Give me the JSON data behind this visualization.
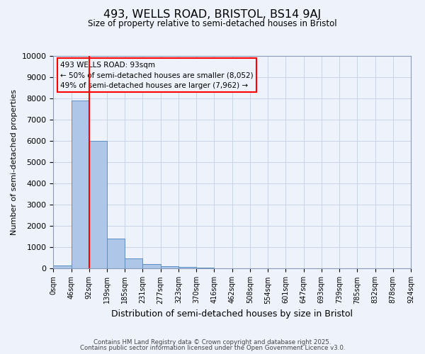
{
  "title": "493, WELLS ROAD, BRISTOL, BS14 9AJ",
  "subtitle": "Size of property relative to semi-detached houses in Bristol",
  "xlabel": "Distribution of semi-detached houses by size in Bristol",
  "ylabel": "Number of semi-detached properties",
  "bar_values": [
    150,
    7900,
    6000,
    1400,
    480,
    230,
    120,
    80,
    40,
    0,
    0,
    0,
    0,
    0,
    0,
    0,
    0,
    0,
    0,
    0
  ],
  "bin_labels": [
    "0sqm",
    "46sqm",
    "92sqm",
    "139sqm",
    "185sqm",
    "231sqm",
    "277sqm",
    "323sqm",
    "370sqm",
    "416sqm",
    "462sqm",
    "508sqm",
    "554sqm",
    "601sqm",
    "647sqm",
    "693sqm",
    "739sqm",
    "785sqm",
    "832sqm",
    "878sqm",
    "924sqm"
  ],
  "bar_color": "#aec6e8",
  "bar_edge_color": "#5a8fc2",
  "red_line_x": 2,
  "annotation_box_text": "493 WELLS ROAD: 93sqm\n← 50% of semi-detached houses are smaller (8,052)\n49% of semi-detached houses are larger (7,962) →",
  "ylim": [
    0,
    10000
  ],
  "yticks": [
    0,
    1000,
    2000,
    3000,
    4000,
    5000,
    6000,
    7000,
    8000,
    9000,
    10000
  ],
  "footer_line1": "Contains HM Land Registry data © Crown copyright and database right 2025.",
  "footer_line2": "Contains public sector information licensed under the Open Government Licence v3.0.",
  "bg_color": "#eef2fa",
  "grid_color": "#c8d4e8"
}
